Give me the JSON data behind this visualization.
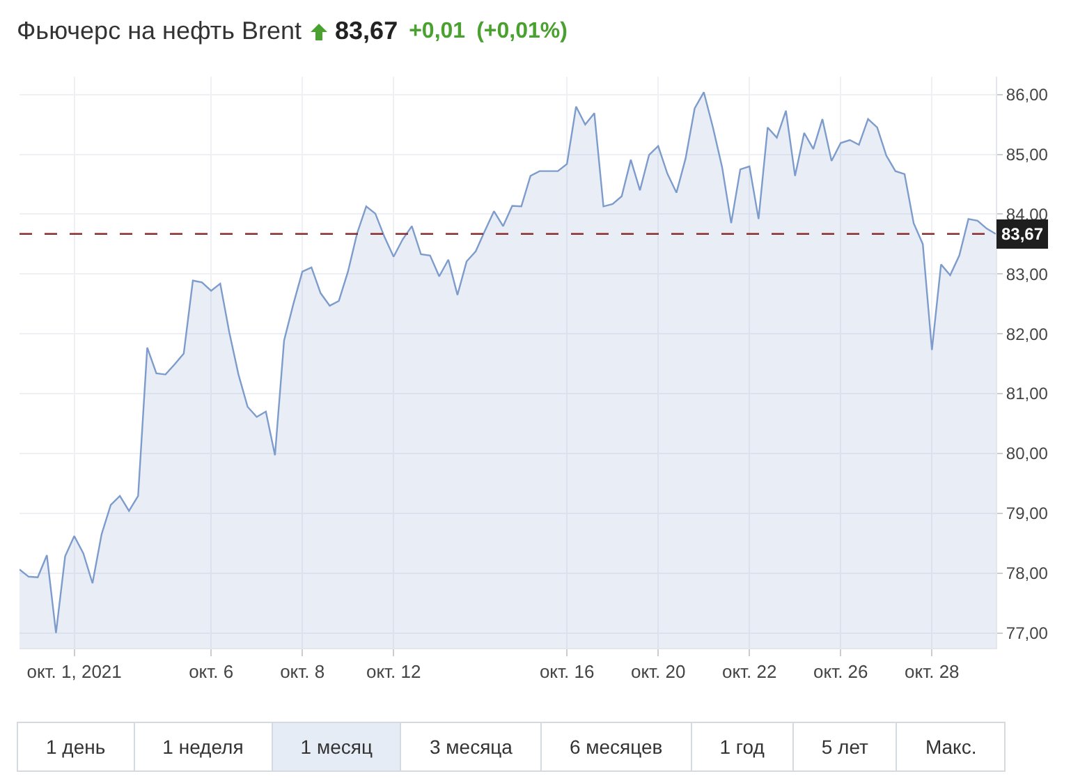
{
  "chart_data": {
    "type": "area",
    "title": "Фьючерс на нефть Brent",
    "subtitle": "83,67 +0,01 (+0,01%)",
    "color": "#7d9ccc",
    "grid": true,
    "marker": "none",
    "line_style": "solid",
    "categories": [
      null,
      null,
      null,
      null,
      null,
      null,
      "окт. 1, 2021",
      null,
      null,
      null,
      null,
      null,
      null,
      null,
      null,
      null,
      null,
      null,
      null,
      null,
      null,
      "окт. 6",
      null,
      null,
      null,
      null,
      null,
      null,
      null,
      null,
      null,
      "окт. 8",
      null,
      null,
      null,
      null,
      null,
      null,
      null,
      null,
      null,
      "окт. 12",
      null,
      null,
      null,
      null,
      null,
      null,
      null,
      null,
      null,
      null,
      null,
      null,
      null,
      null,
      null,
      null,
      null,
      null,
      "окт. 16",
      null,
      null,
      null,
      null,
      null,
      null,
      null,
      null,
      null,
      "окт. 20",
      null,
      null,
      null,
      null,
      null,
      null,
      null,
      null,
      null,
      "окт. 22",
      null,
      null,
      null,
      null,
      null,
      null,
      null,
      null,
      null,
      "окт. 26",
      null,
      null,
      null,
      null,
      null,
      null,
      null,
      null,
      null,
      "окт. 28",
      null,
      null,
      null,
      null,
      null,
      null,
      null
    ],
    "values": [
      78.06,
      77.94,
      77.93,
      78.3,
      77.0,
      78.28,
      78.62,
      78.33,
      77.83,
      78.65,
      79.14,
      79.29,
      79.04,
      79.29,
      81.77,
      81.34,
      81.32,
      81.49,
      81.67,
      82.89,
      82.86,
      82.72,
      82.84,
      82.02,
      81.32,
      80.78,
      80.61,
      80.7,
      79.97,
      81.89,
      82.49,
      83.04,
      83.11,
      82.68,
      82.47,
      82.55,
      83.04,
      83.68,
      84.13,
      84.01,
      83.62,
      83.29,
      83.58,
      83.8,
      83.33,
      83.31,
      82.96,
      83.24,
      82.65,
      83.21,
      83.38,
      83.72,
      84.05,
      83.8,
      84.14,
      84.13,
      84.64,
      84.72,
      84.72,
      84.72,
      84.84,
      85.8,
      85.5,
      85.69,
      84.13,
      84.17,
      84.3,
      84.91,
      84.4,
      84.99,
      85.14,
      84.68,
      84.36,
      84.93,
      85.77,
      86.04,
      85.45,
      84.79,
      83.85,
      84.75,
      84.8,
      83.92,
      85.45,
      85.28,
      85.73,
      84.64,
      85.36,
      85.09,
      85.59,
      84.89,
      85.19,
      85.24,
      85.16,
      85.59,
      85.45,
      84.98,
      84.72,
      84.67,
      83.85,
      83.5,
      81.73,
      83.16,
      82.98,
      83.31,
      83.92,
      83.89,
      83.76,
      83.67
    ],
    "ylim": [
      76.75,
      86.3
    ],
    "yticks": [
      {
        "value": 77,
        "label": "77,00"
      },
      {
        "value": 78,
        "label": "78,00"
      },
      {
        "value": 79,
        "label": "79,00"
      },
      {
        "value": 80,
        "label": "80,00"
      },
      {
        "value": 81,
        "label": "81,00"
      },
      {
        "value": 82,
        "label": "82,00"
      },
      {
        "value": 83,
        "label": "83,00"
      },
      {
        "value": 84,
        "label": "84,00"
      },
      {
        "value": 85,
        "label": "85,00"
      },
      {
        "value": 86,
        "label": "86,00"
      }
    ],
    "ref_lines": [
      {
        "axis": "y",
        "value": 83.67,
        "label": "83,67",
        "color": "#8b2a2a",
        "line_style": "dashed"
      }
    ],
    "annotations": [
      "1 день",
      "1 неделя",
      "1 месяц",
      "3 месяца",
      "6 месяцев",
      "1 год",
      "5 лет",
      "Макс."
    ]
  }
}
